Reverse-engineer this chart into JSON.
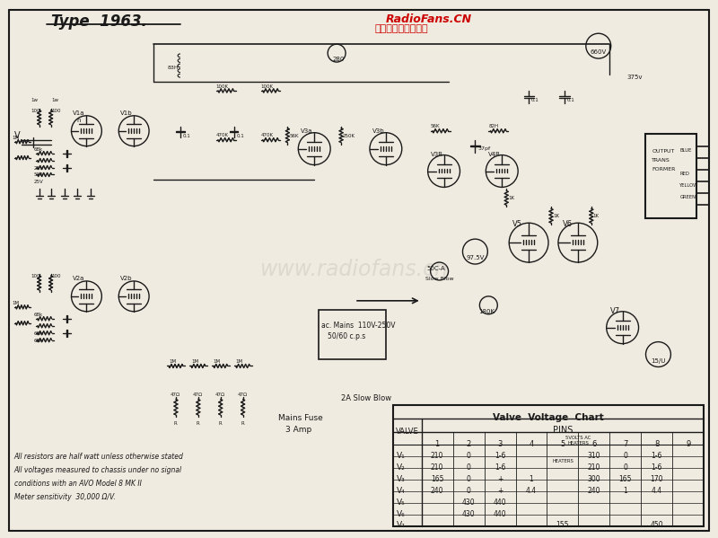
{
  "background_color": "#f0ebe0",
  "title_text": "Type  1963.",
  "watermark_text": "www.radiofans.cn",
  "red_text_1": "RadioFans.CN",
  "red_text_2": "收音机爱好者资料库",
  "bottom_note_1": "All resistors are half watt unless otherwise stated",
  "bottom_note_2": "All voltages measured to chassis under no signal",
  "bottom_note_3": "conditions with an AVO Model 8 MK II",
  "bottom_note_4": "Meter sensitivity  30,000 Ω/V.",
  "mains_fuse": "Mains Fuse",
  "mains_fuse2": "3 Amp",
  "slow_blow": "2A Slow Blow",
  "ac_mains": "ac. Mains  110V-250V",
  "ac_mains2": "50/60 c.p.s",
  "table_title": "Valve  Voltage  Chart",
  "valve_col": "VALVE",
  "pins_col": "PINS",
  "col_headers": [
    "1",
    "2",
    "3",
    "4",
    "5",
    "6",
    "7",
    "8",
    "9"
  ],
  "row_labels": [
    "V₁",
    "V₂",
    "V₃",
    "V₄",
    "V₅",
    "V₆",
    "V₇"
  ],
  "table_data": [
    [
      "210",
      "0",
      "1-6",
      "",
      "",
      "310",
      "0",
      "1-6",
      ""
    ],
    [
      "210",
      "0",
      "1-6",
      "",
      "",
      "210",
      "0",
      "1-6",
      ""
    ],
    [
      "165",
      "0",
      "+",
      "1",
      "",
      "300",
      "165",
      "170",
      ""
    ],
    [
      "240",
      "0",
      "+",
      "4.4",
      "",
      "240",
      "1",
      "4.4",
      ""
    ],
    [
      "",
      "430",
      "440",
      "",
      "",
      "",
      "",
      "",
      ""
    ],
    [
      "",
      "430",
      "440",
      "",
      "",
      "",
      "",
      "",
      ""
    ],
    [
      "",
      "",
      "",
      "",
      "155",
      "",
      "",
      "450",
      ""
    ]
  ],
  "schema_line_color": "#1a1a1a",
  "fig_width": 8.0,
  "fig_height": 5.99
}
